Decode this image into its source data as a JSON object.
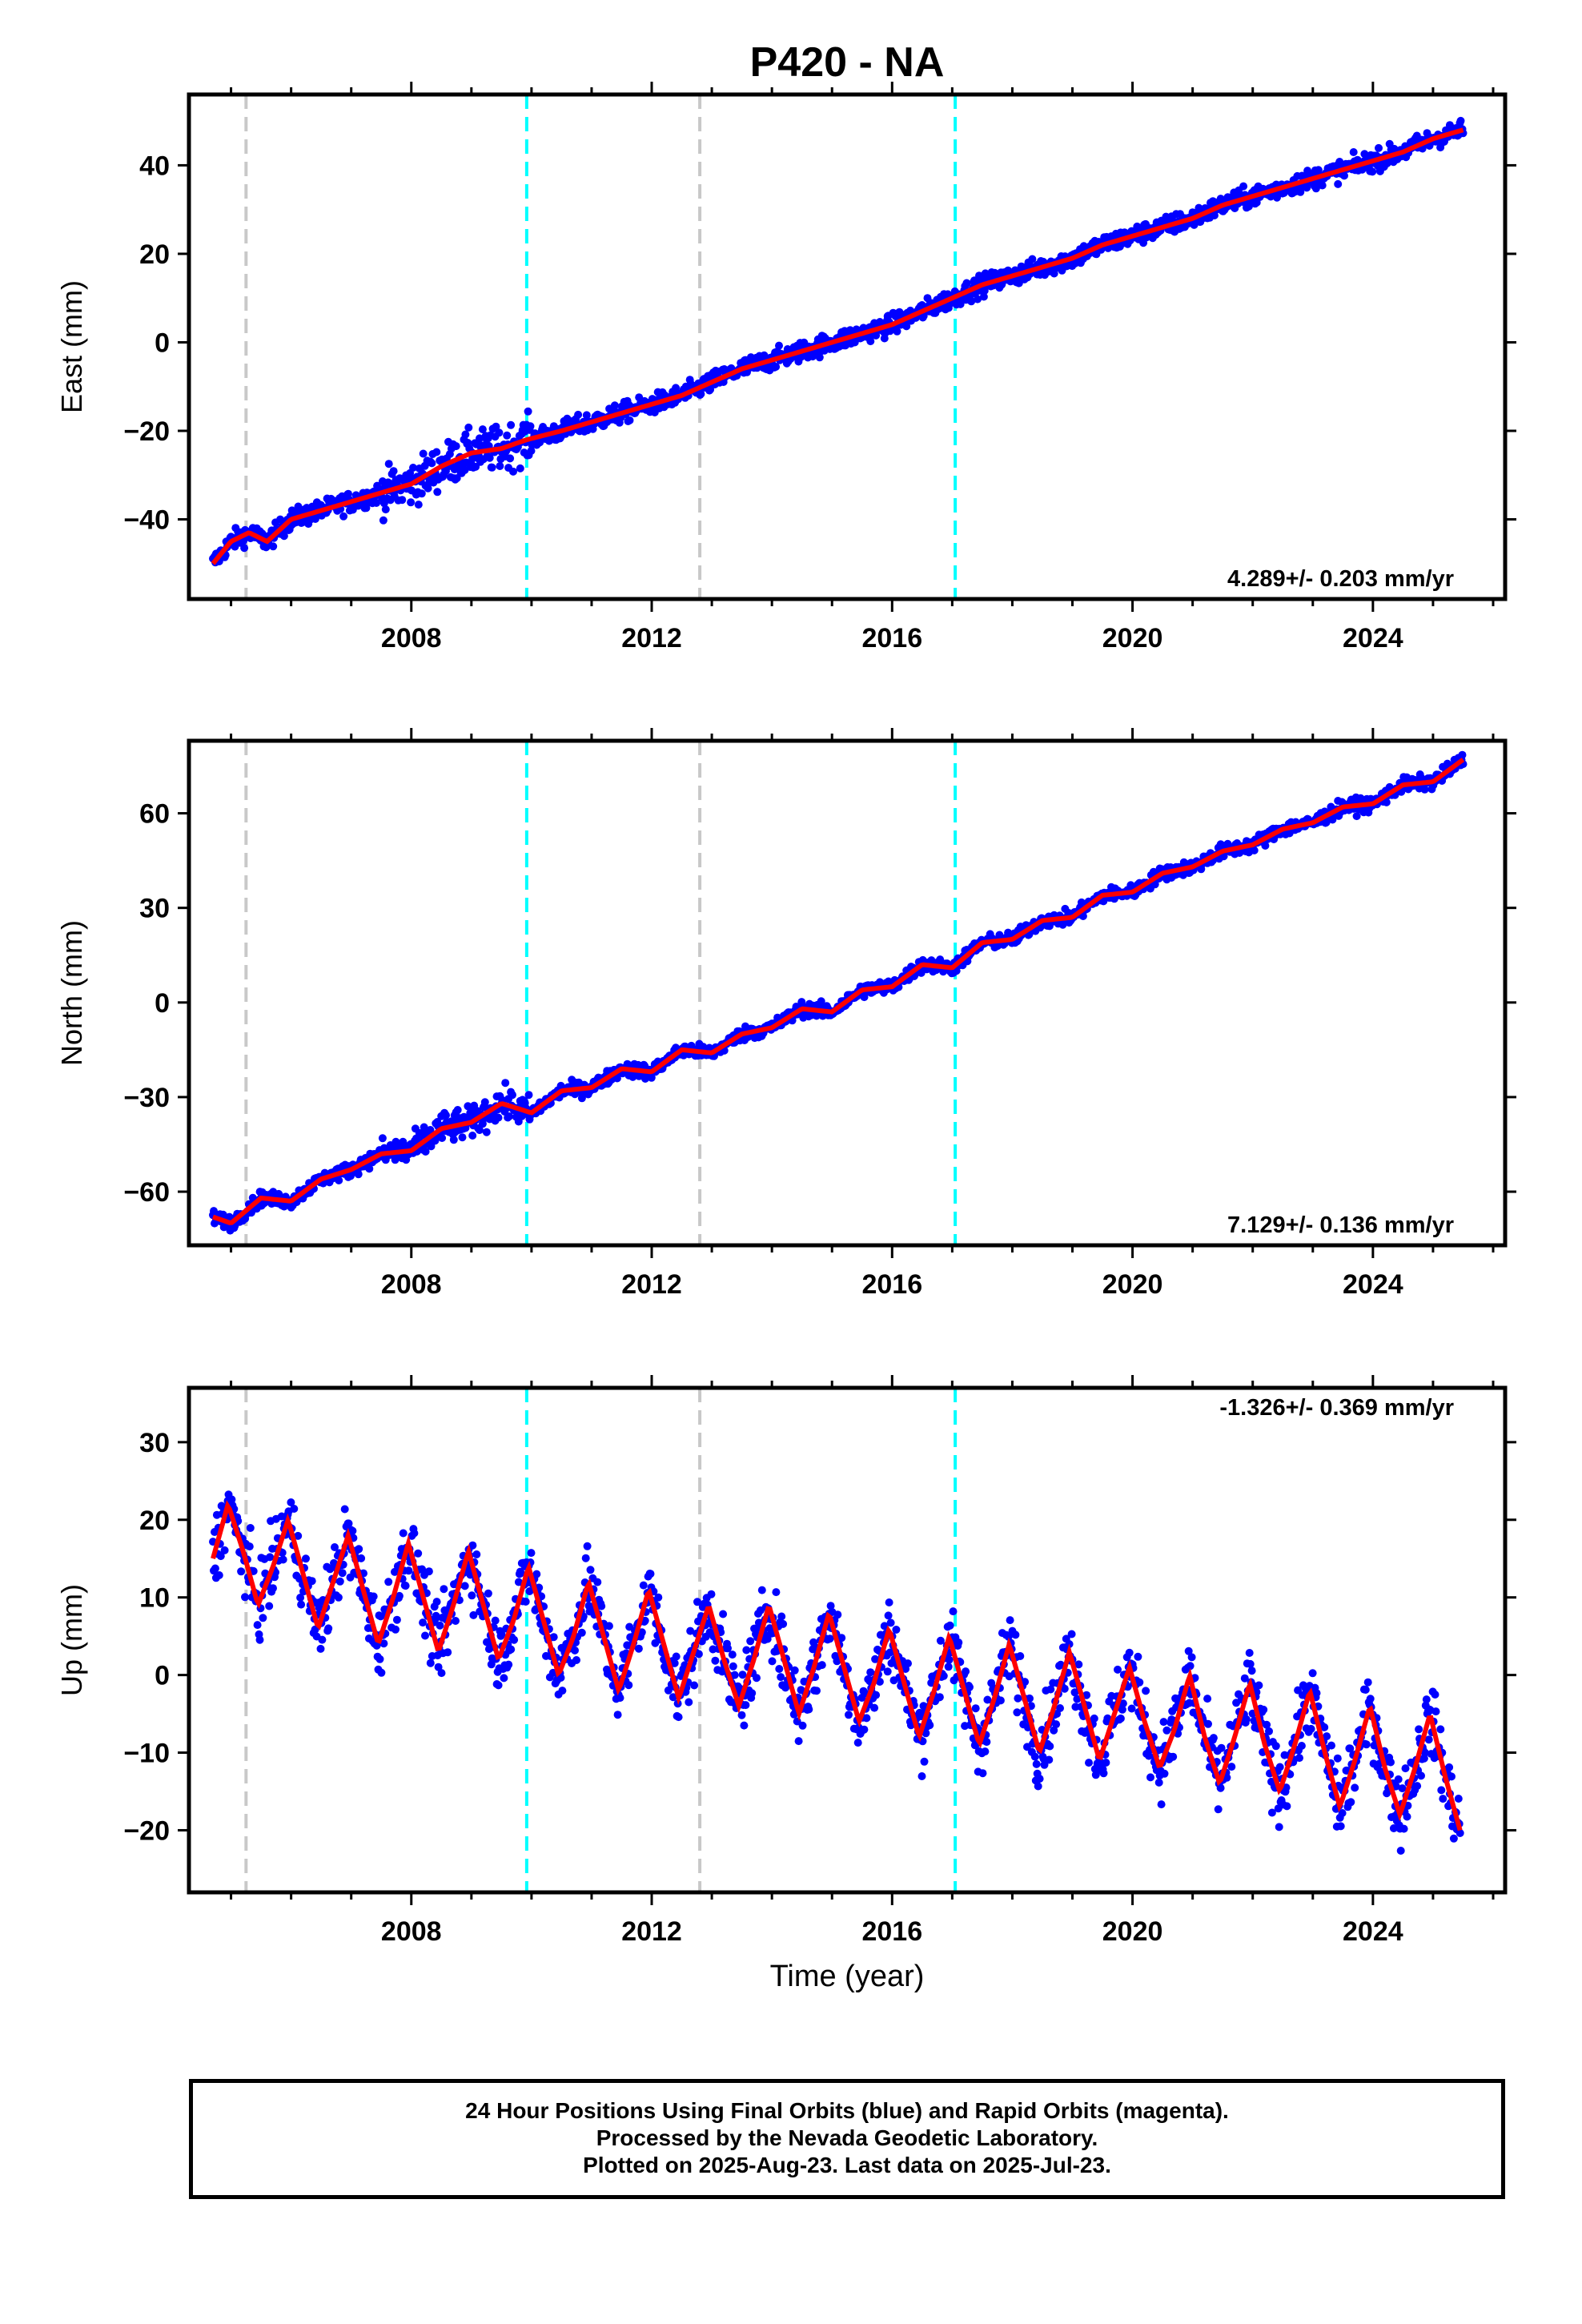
{
  "title": "P420 - NA",
  "xlabel": "Time (year)",
  "x_ticks": [
    2008,
    2012,
    2016,
    2020,
    2024
  ],
  "footer": {
    "line1": "24 Hour Positions Using Final Orbits (blue) and Rapid Orbits (magenta).",
    "line2": "Processed by the Nevada Geodetic Laboratory.",
    "line3": "Plotted on 2025-Aug-23. Last data on 2025-Jul-23."
  },
  "colors": {
    "data": "#0000ff",
    "model": "#ff0000",
    "equipment_change": "#c8c8c8",
    "earthquake": "#00ffff"
  },
  "chart_data": [
    {
      "type": "scatter",
      "panel": "east",
      "title": "P420 - NA",
      "ylabel": "East (mm)",
      "xlim": [
        2004.3,
        2026.2
      ],
      "ylim": [
        -58,
        56
      ],
      "y_ticks": [
        -40,
        -20,
        0,
        20,
        40
      ],
      "x_ticks": [
        2008,
        2012,
        2016,
        2020,
        2024
      ],
      "rate_label": "4.289+/- 0.203 mm/yr",
      "rate_position": "bottom-right",
      "vertical_lines": [
        {
          "x": 2005.25,
          "color": "gray"
        },
        {
          "x": 2009.92,
          "color": "cyan"
        },
        {
          "x": 2012.8,
          "color": "gray"
        },
        {
          "x": 2017.05,
          "color": "cyan"
        }
      ],
      "x": [
        2004.7,
        2005.0,
        2005.3,
        2005.6,
        2006.0,
        2006.5,
        2007.0,
        2007.5,
        2008.0,
        2008.5,
        2009.0,
        2009.5,
        2009.92,
        2010.5,
        2011.0,
        2011.5,
        2012.0,
        2012.5,
        2013.0,
        2013.5,
        2014.0,
        2014.5,
        2015.0,
        2015.5,
        2016.0,
        2016.5,
        2017.0,
        2017.5,
        2018.0,
        2018.5,
        2019.0,
        2019.5,
        2020.0,
        2020.5,
        2021.0,
        2021.5,
        2022.0,
        2022.5,
        2023.0,
        2023.5,
        2024.0,
        2024.5,
        2025.0,
        2025.5
      ],
      "y": [
        -50,
        -45,
        -43,
        -45,
        -40,
        -38,
        -36,
        -34,
        -32,
        -28,
        -25,
        -24,
        -22,
        -20,
        -18,
        -16,
        -14,
        -12,
        -9,
        -6,
        -4,
        -2,
        0,
        2,
        4,
        7,
        10,
        13,
        15,
        17,
        19,
        22,
        24,
        26,
        28,
        31,
        33,
        35,
        37,
        39,
        41,
        43,
        46,
        48
      ],
      "fit_slope_mm_per_yr": 4.289,
      "fit_intercept_at_2015": 0,
      "seasonal_amplitude_mm": 2.5
    },
    {
      "type": "scatter",
      "panel": "north",
      "ylabel": "North (mm)",
      "xlim": [
        2004.3,
        2026.2
      ],
      "ylim": [
        -77,
        83
      ],
      "y_ticks": [
        -60,
        -30,
        0,
        30,
        60
      ],
      "x_ticks": [
        2008,
        2012,
        2016,
        2020,
        2024
      ],
      "rate_label": "7.129+/- 0.136 mm/yr",
      "rate_position": "bottom-right",
      "vertical_lines": [
        {
          "x": 2005.25,
          "color": "gray"
        },
        {
          "x": 2009.92,
          "color": "cyan"
        },
        {
          "x": 2012.8,
          "color": "gray"
        },
        {
          "x": 2017.05,
          "color": "cyan"
        }
      ],
      "x": [
        2004.7,
        2005.0,
        2005.5,
        2006.0,
        2006.5,
        2007.0,
        2007.5,
        2008.0,
        2008.5,
        2009.0,
        2009.5,
        2010.0,
        2010.5,
        2011.0,
        2011.5,
        2012.0,
        2012.5,
        2013.0,
        2013.5,
        2014.0,
        2014.5,
        2015.0,
        2015.5,
        2016.0,
        2016.5,
        2017.0,
        2017.5,
        2018.0,
        2018.5,
        2019.0,
        2019.5,
        2020.0,
        2020.5,
        2021.0,
        2021.5,
        2022.0,
        2022.5,
        2023.0,
        2023.5,
        2024.0,
        2024.5,
        2025.0,
        2025.5
      ],
      "y": [
        -68,
        -70,
        -62,
        -63,
        -56,
        -53,
        -48,
        -47,
        -40,
        -38,
        -32,
        -35,
        -28,
        -27,
        -21,
        -22,
        -15,
        -16,
        -10,
        -8,
        -2,
        -3,
        4,
        5,
        12,
        11,
        19,
        20,
        26,
        27,
        34,
        35,
        41,
        43,
        48,
        50,
        55,
        57,
        62,
        63,
        69,
        70,
        77
      ],
      "fit_slope_mm_per_yr": 7.129,
      "fit_intercept_at_2015": -3,
      "seasonal_amplitude_mm": 2.5
    },
    {
      "type": "scatter",
      "panel": "up",
      "ylabel": "Up (mm)",
      "xlabel": "Time (year)",
      "xlim": [
        2004.3,
        2026.2
      ],
      "ylim": [
        -28,
        37
      ],
      "y_ticks": [
        -20,
        -10,
        0,
        10,
        20,
        30
      ],
      "x_ticks": [
        2008,
        2012,
        2016,
        2020,
        2024
      ],
      "rate_label": "-1.326+/- 0.369 mm/yr",
      "rate_position": "top-right",
      "vertical_lines": [
        {
          "x": 2005.25,
          "color": "gray"
        },
        {
          "x": 2009.92,
          "color": "cyan"
        },
        {
          "x": 2012.8,
          "color": "gray"
        },
        {
          "x": 2017.05,
          "color": "cyan"
        }
      ],
      "x": [
        2004.7,
        2004.95,
        2005.2,
        2005.45,
        2005.7,
        2005.95,
        2006.2,
        2006.45,
        2006.7,
        2006.95,
        2007.2,
        2007.45,
        2007.7,
        2007.95,
        2008.2,
        2008.45,
        2008.7,
        2008.95,
        2009.2,
        2009.45,
        2009.7,
        2009.95,
        2010.2,
        2010.45,
        2010.7,
        2010.95,
        2011.2,
        2011.45,
        2011.7,
        2011.95,
        2012.2,
        2012.45,
        2012.7,
        2012.95,
        2013.2,
        2013.45,
        2013.7,
        2013.95,
        2014.2,
        2014.45,
        2014.7,
        2014.95,
        2015.2,
        2015.45,
        2015.7,
        2015.95,
        2016.2,
        2016.45,
        2016.7,
        2016.95,
        2017.2,
        2017.45,
        2017.7,
        2017.95,
        2018.2,
        2018.45,
        2018.7,
        2018.95,
        2019.2,
        2019.45,
        2019.7,
        2019.95,
        2020.2,
        2020.45,
        2020.7,
        2020.95,
        2021.2,
        2021.45,
        2021.7,
        2021.95,
        2022.2,
        2022.45,
        2022.7,
        2022.95,
        2023.2,
        2023.45,
        2023.7,
        2023.95,
        2024.2,
        2024.45,
        2024.7,
        2024.95,
        2025.2,
        2025.45
      ],
      "y": [
        15,
        22,
        16,
        9,
        14,
        20,
        13,
        6,
        12,
        18,
        11,
        4,
        10,
        17,
        10,
        3,
        9,
        16,
        9,
        2,
        7,
        14,
        7,
        0,
        5,
        12,
        5,
        -2,
        4,
        11,
        4,
        -3,
        3,
        9,
        2,
        -4,
        2,
        9,
        2,
        -5,
        1,
        8,
        1,
        -6,
        -1,
        6,
        -1,
        -8,
        -2,
        5,
        -2,
        -9,
        -3,
        4,
        -3,
        -10,
        -4,
        3,
        -4,
        -11,
        -5,
        1,
        -6,
        -12,
        -7,
        0,
        -8,
        -14,
        -8,
        -1,
        -9,
        -15,
        -9,
        -2,
        -10,
        -17,
        -11,
        -4,
        -12,
        -18,
        -12,
        -5,
        -13,
        -20
      ],
      "fit_slope_mm_per_yr": -1.326,
      "fit_intercept_at_2015": 0.5,
      "seasonal_amplitude_mm": 6.5
    }
  ]
}
